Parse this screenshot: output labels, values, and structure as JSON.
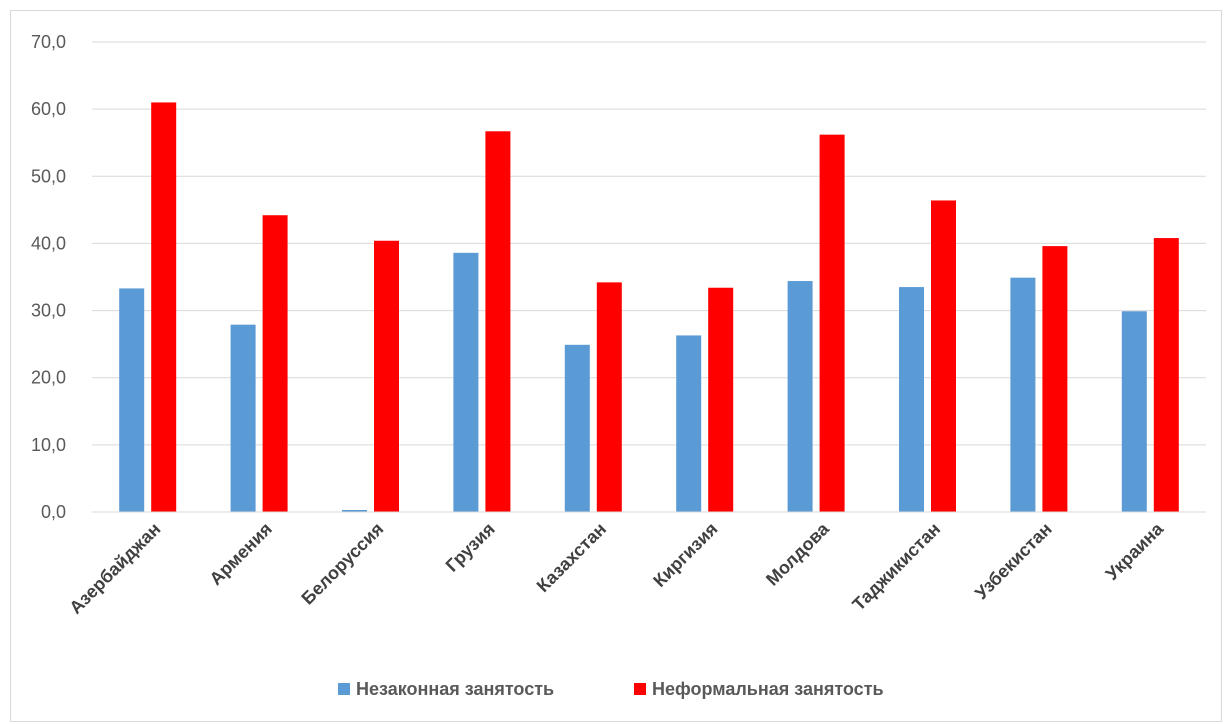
{
  "chart_data": {
    "type": "bar",
    "categories": [
      "Азербайджан",
      "Армения",
      "Белоруссия",
      "Грузия",
      "Казахстан",
      "Киргизия",
      "Молдова",
      "Таджикистан",
      "Узбекистан",
      "Украина"
    ],
    "series": [
      {
        "name": "Незаконная занятость",
        "color": "#5b9bd5",
        "values": [
          33.3,
          27.9,
          0.3,
          38.6,
          24.9,
          26.3,
          34.4,
          33.5,
          34.9,
          29.9
        ]
      },
      {
        "name": "Неформальная занятость",
        "color": "#ff0000",
        "values": [
          61.0,
          44.2,
          40.4,
          56.7,
          34.2,
          33.4,
          56.2,
          46.4,
          39.6,
          40.8
        ]
      }
    ],
    "y_ticks": [
      "0,0",
      "10,0",
      "20,0",
      "30,0",
      "40,0",
      "50,0",
      "60,0",
      "70,0"
    ],
    "ylim": [
      0,
      70
    ],
    "grid": true,
    "legend_position": "bottom",
    "title": "",
    "xlabel": "",
    "ylabel": ""
  }
}
